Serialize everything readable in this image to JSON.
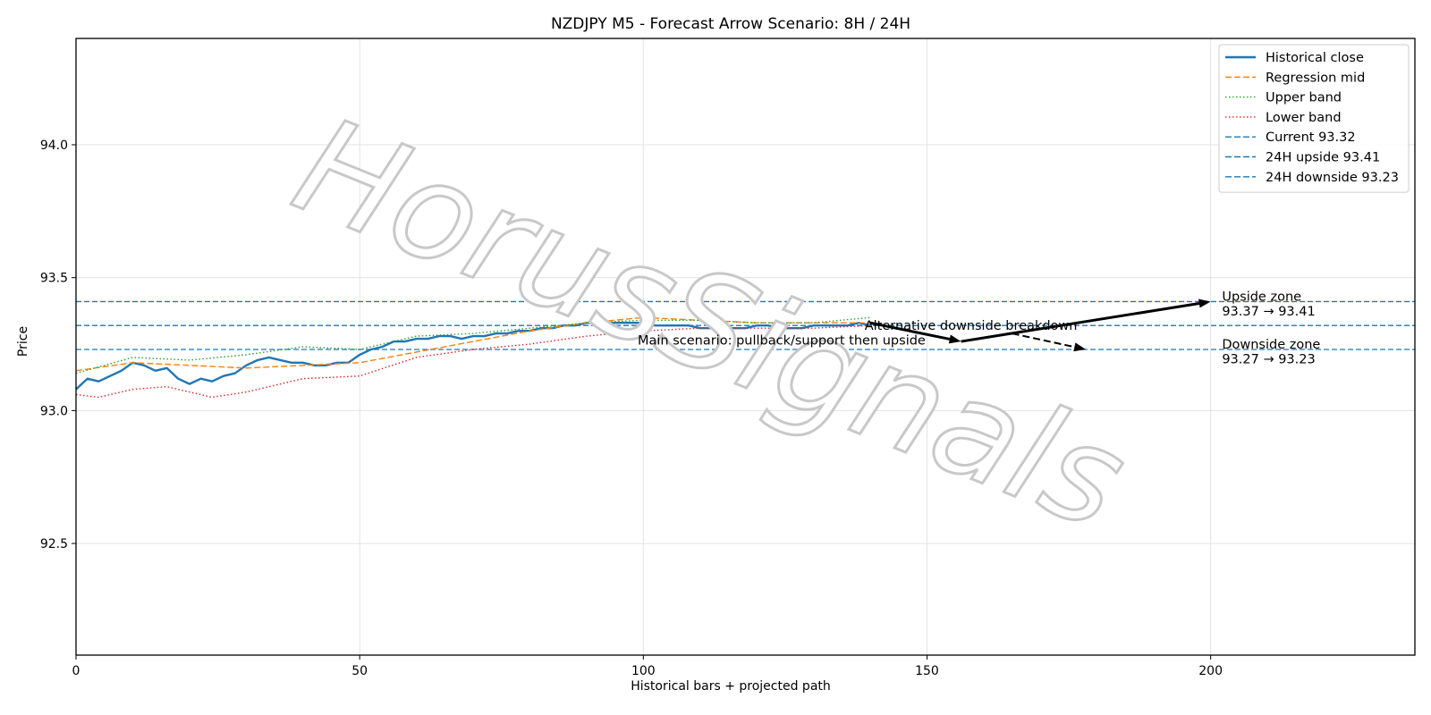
{
  "chart_data": {
    "type": "line",
    "title": "NZDJPY M5 - Forecast Arrow Scenario: 8H / 24H",
    "xlabel": "Historical bars + projected path",
    "ylabel": "Price",
    "xlim": [
      0,
      236
    ],
    "ylim": [
      92.08,
      94.4
    ],
    "x_ticks": [
      0,
      50,
      100,
      150,
      200
    ],
    "y_ticks": [
      92.5,
      93.0,
      93.5,
      94.0
    ],
    "y_tick_labels": [
      "92.5",
      "93.0",
      "93.5",
      "94.0"
    ],
    "grid": true,
    "legend_position": "top-right",
    "watermark": "HorusSignals",
    "series": [
      {
        "name": "Historical close",
        "color": "#1f77b4",
        "style": "solid",
        "x": [
          0,
          2,
          4,
          6,
          8,
          10,
          12,
          14,
          16,
          18,
          20,
          22,
          24,
          26,
          28,
          30,
          32,
          34,
          36,
          38,
          40,
          42,
          44,
          46,
          48,
          50,
          52,
          54,
          56,
          58,
          60,
          62,
          64,
          66,
          68,
          70,
          72,
          74,
          76,
          78,
          80,
          82,
          84,
          86,
          88,
          90,
          92,
          94,
          96,
          98,
          100,
          102,
          104,
          106,
          108,
          110,
          112,
          114,
          116,
          118,
          120,
          122,
          124,
          126,
          128,
          130,
          132,
          134,
          136,
          138,
          140
        ],
        "values": [
          93.08,
          93.12,
          93.11,
          93.13,
          93.15,
          93.18,
          93.17,
          93.15,
          93.16,
          93.12,
          93.1,
          93.12,
          93.11,
          93.13,
          93.14,
          93.17,
          93.19,
          93.2,
          93.19,
          93.18,
          93.18,
          93.17,
          93.17,
          93.18,
          93.18,
          93.21,
          93.23,
          93.24,
          93.26,
          93.26,
          93.27,
          93.27,
          93.28,
          93.28,
          93.27,
          93.28,
          93.28,
          93.29,
          93.29,
          93.3,
          93.3,
          93.31,
          93.31,
          93.32,
          93.32,
          93.33,
          93.33,
          93.33,
          93.33,
          93.33,
          93.33,
          93.32,
          93.32,
          93.32,
          93.32,
          93.31,
          93.31,
          93.31,
          93.31,
          93.31,
          93.32,
          93.32,
          93.31,
          93.31,
          93.31,
          93.32,
          93.32,
          93.32,
          93.32,
          93.33,
          93.32
        ]
      },
      {
        "name": "Regression mid",
        "color": "#ff7f0e",
        "style": "dashed",
        "x": [
          0,
          10,
          20,
          30,
          40,
          50,
          60,
          70,
          80,
          90,
          100,
          110,
          120,
          130,
          140
        ],
        "values": [
          93.15,
          93.18,
          93.17,
          93.16,
          93.17,
          93.18,
          93.22,
          93.26,
          93.3,
          93.33,
          93.35,
          93.34,
          93.33,
          93.33,
          93.33
        ]
      },
      {
        "name": "Upper band",
        "color": "#2ca02c",
        "style": "dotted",
        "x": [
          0,
          10,
          20,
          30,
          40,
          50,
          60,
          70,
          80,
          90,
          100,
          110,
          120,
          130,
          140
        ],
        "values": [
          93.14,
          93.2,
          93.19,
          93.21,
          93.24,
          93.23,
          93.28,
          93.29,
          93.31,
          93.33,
          93.34,
          93.34,
          93.33,
          93.33,
          93.35
        ]
      },
      {
        "name": "Lower band",
        "color": "#d62728",
        "style": "dotted",
        "x": [
          0,
          4,
          10,
          16,
          20,
          24,
          30,
          40,
          50,
          60,
          70,
          80,
          90,
          100,
          110,
          120,
          130,
          140
        ],
        "values": [
          93.06,
          93.05,
          93.08,
          93.09,
          93.07,
          93.05,
          93.07,
          93.12,
          93.13,
          93.2,
          93.23,
          93.25,
          93.28,
          93.3,
          93.31,
          93.31,
          93.31,
          93.32
        ]
      }
    ],
    "reference_lines": [
      {
        "name": "Current 93.32",
        "y": 93.32,
        "color": "#1f77b4"
      },
      {
        "name": "24H upside 93.41",
        "y": 93.41,
        "color": "#1f77b4"
      },
      {
        "name": "24H downside 93.23",
        "y": 93.23,
        "color": "#1f77b4"
      }
    ],
    "arrows": [
      {
        "from": [
          140,
          93.33
        ],
        "to": [
          156,
          93.26
        ],
        "style": "solid"
      },
      {
        "from": [
          156,
          93.26
        ],
        "to": [
          200,
          93.41
        ],
        "style": "solid"
      },
      {
        "from": [
          165,
          93.29
        ],
        "to": [
          178,
          93.23
        ],
        "style": "dashed"
      }
    ],
    "annotations": [
      {
        "text": "Main scenario: pullback/support then upside",
        "x": 99,
        "y": 93.265
      },
      {
        "text": "Alternative downside breakdown",
        "x": 139,
        "y": 93.32
      },
      {
        "text": "Upside zone",
        "x": 202,
        "y": 93.43
      },
      {
        "text": "93.37 → 93.41",
        "x": 202,
        "y": 93.375
      },
      {
        "text": "Downside zone",
        "x": 202,
        "y": 93.25
      },
      {
        "text": "93.27 → 93.23",
        "x": 202,
        "y": 93.195
      }
    ]
  }
}
